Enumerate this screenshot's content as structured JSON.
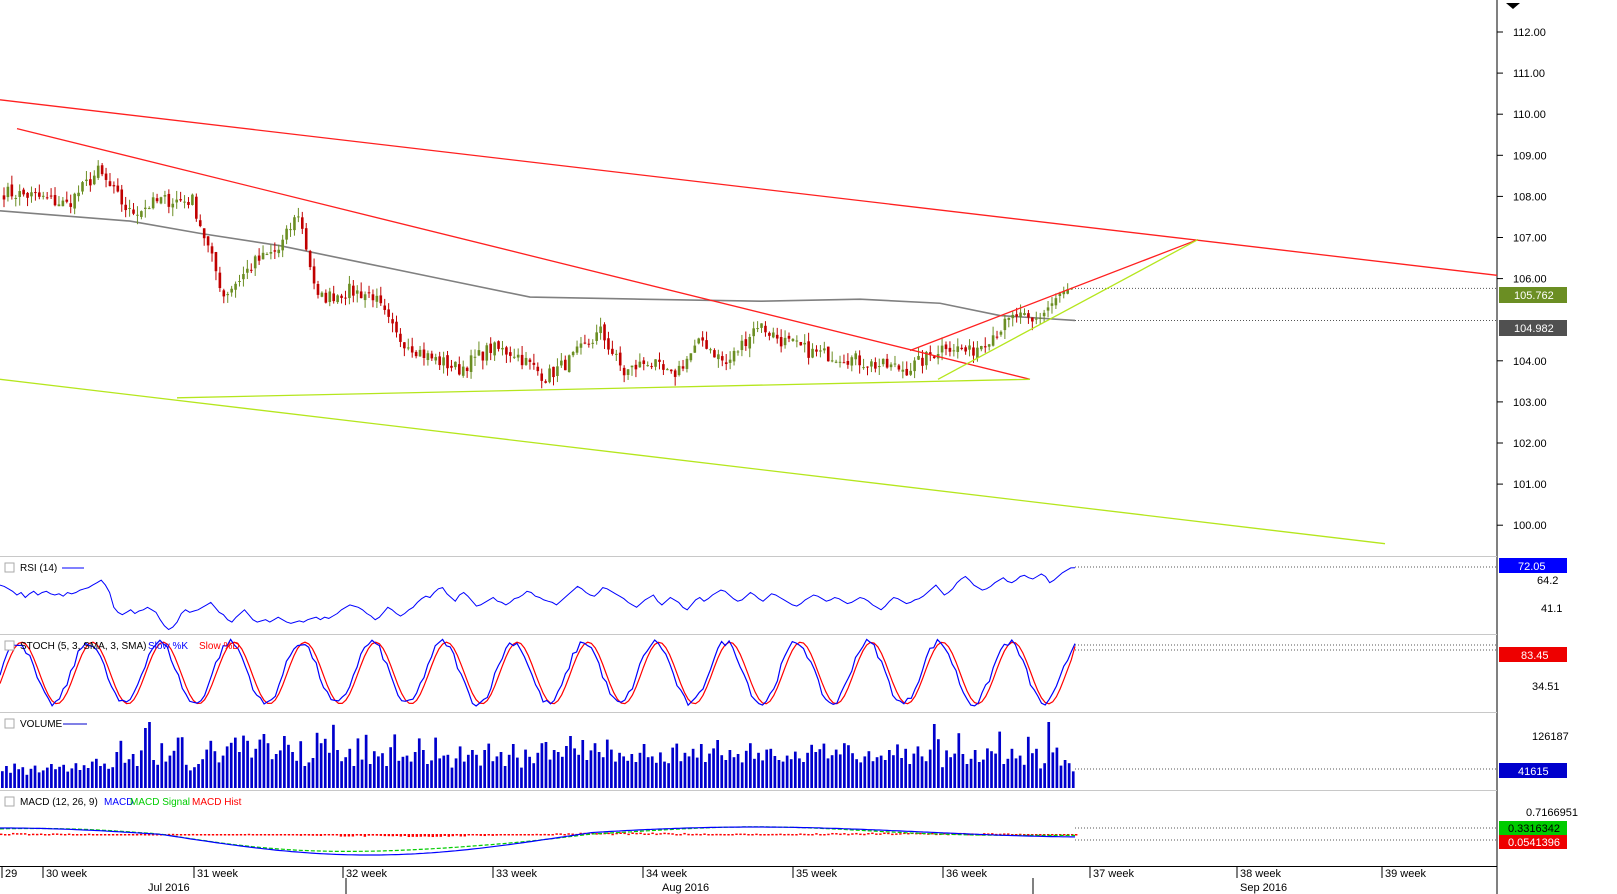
{
  "colors": {
    "up": "#6b8e23",
    "down": "#c00000",
    "trend_red": "#ff2020",
    "trend_green": "#b5e61d",
    "ma": "#808080",
    "rsi": "#0000ff",
    "stoch_k": "#0000ff",
    "stoch_d": "#ff0000",
    "volume": "#0000cc",
    "macd": "#0000ff",
    "macd_signal": "#00cc00",
    "macd_hist": "#ff0000"
  },
  "chart_data": [
    {
      "type": "candlestick",
      "title": "",
      "price_axis": {
        "ticks": [
          "112.00",
          "111.00",
          "110.00",
          "109.00",
          "108.00",
          "107.00",
          "106.00",
          "104.00",
          "103.00",
          "102.00",
          "101.00",
          "100.00"
        ],
        "ylim": [
          99.5,
          112.75
        ]
      },
      "last_price": "105.762",
      "ma_value": "104.982",
      "anchors": [
        {
          "price": 108.1,
          "bar": 0
        },
        {
          "price": 108.0,
          "bar": 8
        },
        {
          "price": 107.8,
          "bar": 16
        },
        {
          "price": 108.6,
          "bar": 24
        },
        {
          "price": 107.6,
          "bar": 32
        },
        {
          "price": 107.9,
          "bar": 40
        },
        {
          "price": 107.9,
          "bar": 48
        },
        {
          "price": 105.6,
          "bar": 56
        },
        {
          "price": 106.4,
          "bar": 64
        },
        {
          "price": 106.7,
          "bar": 70
        },
        {
          "price": 107.6,
          "bar": 75
        },
        {
          "price": 105.5,
          "bar": 80
        },
        {
          "price": 105.7,
          "bar": 88
        },
        {
          "price": 105.6,
          "bar": 94
        },
        {
          "price": 104.6,
          "bar": 100
        },
        {
          "price": 104.1,
          "bar": 108
        },
        {
          "price": 103.8,
          "bar": 116
        },
        {
          "price": 104.3,
          "bar": 124
        },
        {
          "price": 104.2,
          "bar": 130
        },
        {
          "price": 103.6,
          "bar": 138
        },
        {
          "price": 104.0,
          "bar": 144
        },
        {
          "price": 104.7,
          "bar": 152
        },
        {
          "price": 103.7,
          "bar": 158
        },
        {
          "price": 104.0,
          "bar": 164
        },
        {
          "price": 103.6,
          "bar": 170
        },
        {
          "price": 104.5,
          "bar": 178
        },
        {
          "price": 103.9,
          "bar": 184
        },
        {
          "price": 104.9,
          "bar": 192
        },
        {
          "price": 104.5,
          "bar": 198
        },
        {
          "price": 104.2,
          "bar": 206
        },
        {
          "price": 104.1,
          "bar": 214
        },
        {
          "price": 103.9,
          "bar": 222
        },
        {
          "price": 103.8,
          "bar": 230
        },
        {
          "price": 104.0,
          "bar": 234
        },
        {
          "price": 104.4,
          "bar": 240
        },
        {
          "price": 104.2,
          "bar": 246
        },
        {
          "price": 104.8,
          "bar": 254
        },
        {
          "price": 105.1,
          "bar": 258
        },
        {
          "price": 104.9,
          "bar": 262
        },
        {
          "price": 105.5,
          "bar": 268
        },
        {
          "price": 105.76,
          "bar": 272
        }
      ],
      "moving_average_path": [
        {
          "price": 107.65,
          "x": 0
        },
        {
          "price": 107.4,
          "x": 130
        },
        {
          "price": 107.1,
          "x": 200
        },
        {
          "price": 106.8,
          "x": 280
        },
        {
          "price": 106.4,
          "x": 360
        },
        {
          "price": 106.0,
          "x": 440
        },
        {
          "price": 105.55,
          "x": 530
        },
        {
          "price": 105.5,
          "x": 640
        },
        {
          "price": 105.45,
          "x": 760
        },
        {
          "price": 105.5,
          "x": 860
        },
        {
          "price": 105.4,
          "x": 940
        },
        {
          "price": 105.1,
          "x": 1000
        },
        {
          "price": 104.982,
          "x": 1075
        }
      ],
      "trendlines": [
        {
          "color": "red",
          "from": {
            "x": 0,
            "price": 110.35
          },
          "to": {
            "x": 1497,
            "price": 106.08
          }
        },
        {
          "color": "red",
          "from": {
            "x": 17,
            "price": 109.65
          },
          "to": {
            "x": 1030,
            "price": 103.55
          }
        },
        {
          "color": "red",
          "from": {
            "x": 910,
            "price": 104.25
          },
          "to": {
            "x": 1198,
            "price": 106.95
          }
        },
        {
          "color": "green",
          "from": {
            "x": 0,
            "price": 103.55
          },
          "to": {
            "x": 1385,
            "price": 99.55
          }
        },
        {
          "color": "green",
          "from": {
            "x": 177,
            "price": 103.1
          },
          "to": {
            "x": 1030,
            "price": 103.55
          }
        },
        {
          "color": "green",
          "from": {
            "x": 938,
            "price": 103.55
          },
          "to": {
            "x": 1198,
            "price": 106.95
          }
        }
      ]
    },
    {
      "type": "line",
      "title": "RSI (14)",
      "value": "72.05",
      "ticks": [
        "64.2",
        "41.1"
      ],
      "ylim": [
        20,
        80
      ],
      "values": [
        58,
        57,
        55,
        53,
        50,
        52,
        48,
        51,
        53,
        50,
        52,
        53,
        51,
        50,
        51,
        49,
        52,
        51,
        52,
        54,
        55,
        56,
        58,
        60,
        62,
        58,
        52,
        40,
        36,
        34,
        36,
        38,
        35,
        37,
        38,
        40,
        38,
        36,
        30,
        25,
        22,
        24,
        28,
        35,
        38,
        36,
        37,
        38,
        40,
        42,
        44,
        40,
        36,
        34,
        30,
        28,
        32,
        35,
        38,
        34,
        30,
        28,
        29,
        30,
        28,
        30,
        32,
        30,
        28,
        27,
        28,
        29,
        28,
        30,
        31,
        32,
        30,
        32,
        31,
        33,
        35,
        38,
        40,
        42,
        41,
        40,
        38,
        35,
        33,
        30,
        32,
        36,
        40,
        38,
        35,
        33,
        35,
        38,
        40,
        44,
        47,
        49,
        48,
        52,
        55,
        56,
        51,
        48,
        45,
        50,
        52,
        49,
        45,
        41,
        42,
        44,
        46,
        48,
        45,
        44,
        42,
        44,
        47,
        48,
        50,
        53,
        52,
        49,
        48,
        46,
        45,
        44,
        42,
        45,
        48,
        51,
        54,
        57,
        55,
        52,
        50,
        49,
        52,
        56,
        55,
        53,
        51,
        49,
        47,
        44,
        42,
        40,
        43,
        46,
        48,
        50,
        45,
        42,
        45,
        48,
        46,
        44,
        40,
        38,
        42,
        46,
        48,
        45,
        47,
        50,
        52,
        54,
        53,
        50,
        47,
        45,
        46,
        49,
        52,
        50,
        47,
        45,
        48,
        51,
        50,
        48,
        46,
        44,
        42,
        41,
        43,
        46,
        48,
        50,
        49,
        47,
        45,
        46,
        48,
        47,
        45,
        43,
        44,
        46,
        48,
        47,
        45,
        42,
        40,
        38,
        41,
        45,
        48,
        47,
        45,
        43,
        44,
        46,
        47,
        49,
        52,
        55,
        58,
        54,
        50,
        52,
        55,
        60,
        63,
        65,
        62,
        58,
        56,
        54,
        55,
        57,
        60,
        62,
        64,
        61,
        60,
        62,
        65,
        66,
        64,
        63,
        65,
        67,
        65,
        60,
        62,
        65,
        68,
        70,
        72,
        72.05
      ]
    },
    {
      "type": "line",
      "title": "STOCH (5, 3, SMA, 3, SMA)",
      "series_names": [
        "Slow %K",
        "Slow %D"
      ],
      "value": "83.45",
      "ticks": [
        "34.51"
      ],
      "ylim": [
        0,
        100
      ]
    },
    {
      "type": "bar",
      "title": "VOLUME",
      "value": "41615",
      "ticks": [
        "126187"
      ],
      "ylim": [
        0,
        180000
      ],
      "values": [
        42000,
        55000,
        38000,
        61000,
        47000,
        52000,
        33000,
        48000,
        56000,
        39000,
        44000,
        51000,
        60000,
        47000,
        53000,
        58000,
        41000,
        49000,
        62000,
        45000,
        57000,
        50000,
        66000,
        73000,
        55000,
        61000,
        48000,
        52000,
        90000,
        118000,
        63000,
        72000,
        85000,
        55000,
        94000,
        150000,
        165000,
        70000,
        58000,
        112000,
        66000,
        81000,
        93000,
        126000,
        127000,
        58000,
        44000,
        52000,
        60000,
        72000,
        96000,
        118000,
        92000,
        64000,
        81000,
        104000,
        113000,
        126000,
        90000,
        131000,
        118000,
        76000,
        98000,
        121000,
        135000,
        112000,
        72000,
        85000,
        94000,
        130000,
        108000,
        90000,
        68000,
        117000,
        55000,
        64000,
        75000,
        138000,
        112000,
        123000,
        88000,
        158000,
        95000,
        67000,
        77000,
        98000,
        55000,
        124000,
        71000,
        133000,
        60000,
        92000,
        79000,
        87000,
        55000,
        102000,
        134000,
        68000,
        78000,
        81000,
        66000,
        90000,
        124000,
        95000,
        60000,
        69000,
        126000,
        74000,
        81000,
        83000,
        51000,
        74000,
        104000,
        66000,
        83000,
        95000,
        83000,
        56000,
        95000,
        111000,
        67000,
        79000,
        90000,
        55000,
        83000,
        110000,
        76000,
        51000,
        96000,
        78000,
        62000,
        88000,
        112000,
        115000,
        71000,
        95000,
        90000,
        78000,
        105000,
        130000,
        99000,
        83000,
        120000,
        70000,
        94000,
        112000,
        90000,
        77000,
        121000,
        96000,
        66000,
        88000,
        79000,
        68000,
        85000,
        65000,
        88000,
        110000,
        77000,
        79000,
        63000,
        89000,
        66000,
        62000,
        101000,
        111000,
        67000,
        88000,
        79000,
        98000,
        76000,
        110000,
        65000,
        86000,
        99000,
        120000,
        82000,
        70000,
        95000,
        77000,
        85000,
        64000,
        93000,
        112000,
        73000,
        88000,
        69000,
        96000,
        98000,
        80000,
        70000,
        66000,
        81000,
        72000,
        91000,
        74000,
        65000,
        88000,
        108000,
        90000,
        97000,
        111000,
        74000,
        82000,
        96000,
        84000,
        112000,
        107000,
        87000,
        72000,
        64000,
        79000,
        92000,
        67000,
        77000,
        81000,
        70000,
        95000,
        82000,
        109000,
        75000,
        98000,
        60000,
        86000,
        104000,
        79000,
        67000,
        96000,
        160000,
        122000,
        52000,
        94000,
        77000,
        86000,
        137000,
        85000,
        60000,
        73000,
        95000,
        65000,
        71000,
        99000,
        92000,
        86000,
        141000,
        60000,
        73000,
        98000,
        74000,
        81000,
        58000,
        128000,
        87000,
        98000,
        49000,
        62000,
        165000,
        89000,
        101000,
        56000,
        70000,
        62000,
        41615
      ]
    },
    {
      "type": "line",
      "title": "MACD (12, 26, 9)",
      "series_names": [
        "MACD",
        "MACD Signal",
        "MACD Hist"
      ],
      "values_printed": [
        "0.7166951",
        "0.3316342",
        "0.0541396"
      ]
    }
  ],
  "x_axis": {
    "week_labels": [
      "29",
      "30 week",
      "31 week",
      "32 week",
      "33 week",
      "34 week",
      "35 week",
      "36 week",
      "37 week",
      "38 week",
      "39 week"
    ],
    "month_labels": [
      "Jul 2016",
      "Aug 2016",
      "Sep 2016"
    ]
  }
}
